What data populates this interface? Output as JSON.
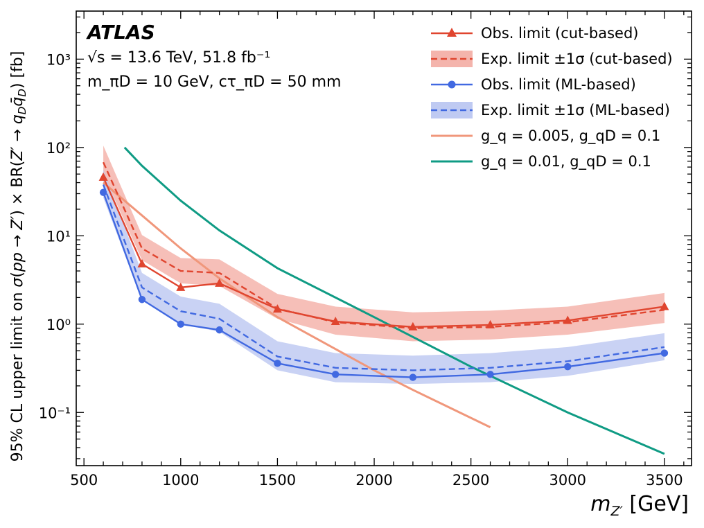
{
  "chart_data": {
    "type": "line",
    "xlabel": "m_Z' [GeV]",
    "ylabel": "95% CL upper limit on σ(pp → Z′) × BR(Z′ → q_D q̄_D) [fb]",
    "xlim": [
      460,
      3640
    ],
    "ylim_log": [
      0.025,
      3500
    ],
    "y_scale": "log",
    "x_ticks": [
      500,
      1000,
      1500,
      2000,
      2500,
      3000,
      3500
    ],
    "x_tick_labels": [
      "500",
      "1000",
      "1500",
      "2000",
      "2500",
      "3000",
      "3500"
    ],
    "y_ticks": [
      0.1,
      1,
      10,
      100,
      1000
    ],
    "y_tick_labels": [
      "10⁻¹",
      "10⁰",
      "10¹",
      "10²",
      "10³"
    ],
    "annotations": {
      "experiment": "ATLAS",
      "energy": "√s = 13.6 TeV, 51.8 fb⁻¹",
      "params": "m_πD = 10 GeV, cτ_πD = 50 mm"
    },
    "legend_position": "top-right",
    "series": [
      {
        "name": "Obs. limit (cut-based)",
        "kind": "observed",
        "marker": "triangle",
        "color": "#e0452f",
        "x": [
          600,
          800,
          1000,
          1200,
          1500,
          1800,
          2200,
          2600,
          3000,
          3500
        ],
        "values": [
          46,
          4.8,
          2.6,
          2.9,
          1.48,
          1.07,
          0.93,
          0.98,
          1.1,
          1.58
        ]
      },
      {
        "name": "Exp. limit ±1σ (cut-based)",
        "kind": "expected",
        "color": "#e0452f",
        "band_color": "#f4b4ac",
        "x": [
          600,
          800,
          1000,
          1200,
          1500,
          1800,
          2200,
          2600,
          3000,
          3500
        ],
        "values": [
          68,
          7.2,
          4.0,
          3.8,
          1.5,
          1.05,
          0.9,
          0.93,
          1.05,
          1.45
        ],
        "lower": [
          50,
          5.3,
          2.9,
          2.7,
          1.15,
          0.76,
          0.64,
          0.67,
          0.76,
          1.03
        ],
        "upper": [
          105,
          10.2,
          5.6,
          5.4,
          2.2,
          1.58,
          1.36,
          1.42,
          1.58,
          2.25
        ]
      },
      {
        "name": "Obs. limit (ML-based)",
        "kind": "observed",
        "marker": "circle",
        "color": "#4169e1",
        "x": [
          600,
          800,
          1000,
          1200,
          1500,
          1800,
          2200,
          2600,
          3000,
          3500
        ],
        "values": [
          31,
          1.9,
          1.0,
          0.86,
          0.36,
          0.27,
          0.25,
          0.27,
          0.33,
          0.47
        ]
      },
      {
        "name": "Exp. limit ±1σ (ML-based)",
        "kind": "expected",
        "color": "#4169e1",
        "band_color": "#bfcaf2",
        "x": [
          600,
          800,
          1000,
          1200,
          1500,
          1800,
          2200,
          2600,
          3000,
          3500
        ],
        "values": [
          38,
          2.6,
          1.4,
          1.15,
          0.43,
          0.32,
          0.3,
          0.32,
          0.38,
          0.55
        ],
        "lower": [
          27,
          1.85,
          1.0,
          0.82,
          0.3,
          0.22,
          0.21,
          0.22,
          0.26,
          0.39
        ],
        "upper": [
          56,
          3.8,
          2.05,
          1.7,
          0.64,
          0.47,
          0.44,
          0.47,
          0.55,
          0.79
        ]
      },
      {
        "name": "g_q = 0.005, g_qD = 0.1",
        "kind": "theory",
        "color": "#f0977b",
        "x": [
          600,
          800,
          1000,
          1200,
          1500,
          2000,
          2200,
          2600
        ],
        "values": [
          40,
          17,
          7.2,
          3.3,
          1.2,
          0.3,
          0.18,
          0.068
        ]
      },
      {
        "name": "g_q = 0.01, g_qD = 0.1",
        "kind": "theory",
        "color": "#0f9b84",
        "x": [
          710,
          800,
          1000,
          1200,
          1500,
          2000,
          2500,
          3000,
          3500
        ],
        "values": [
          100,
          62,
          25,
          11.5,
          4.3,
          1.2,
          0.33,
          0.1,
          0.034
        ]
      }
    ]
  },
  "text": {
    "atlas": "ATLAS",
    "energy": "√s = 13.6 TeV, 51.8 fb⁻¹",
    "params": "m",
    "params_rest": " = 10 GeV, cτ",
    "params_end": " = 50 mm",
    "legend": [
      "Obs. limit (cut-based)",
      "Exp. limit ±1σ (cut-based)",
      "Obs. limit (ML-based)",
      "Exp. limit ±1σ (ML-based)",
      "g",
      "g"
    ],
    "xlabel_main": "m",
    "xlabel_sub": "Z′",
    "xlabel_unit": " [GeV]"
  }
}
